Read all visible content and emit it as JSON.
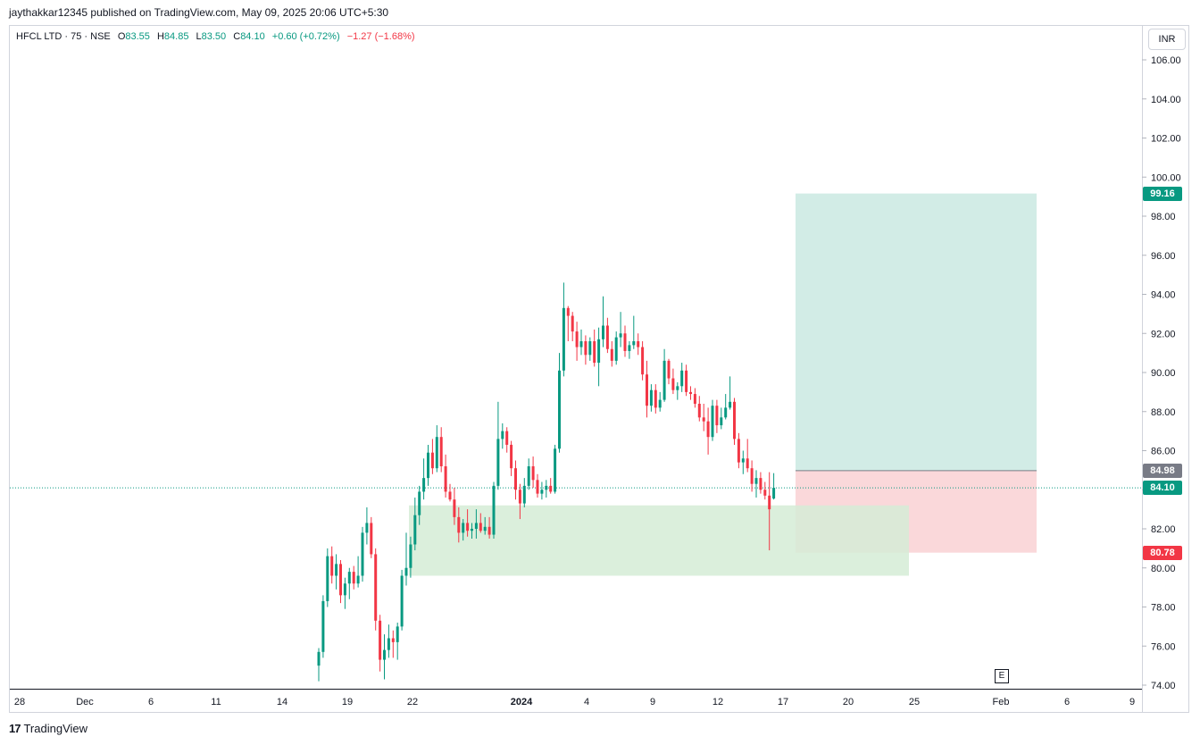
{
  "header": {
    "publish_text": "jaythakkar12345 published on TradingView.com, May 09, 2025 20:06 UTC+5:30"
  },
  "legend": {
    "symbol": "HFCL LTD · 75 · NSE",
    "o_label": "O",
    "o_value": "83.55",
    "h_label": "H",
    "h_value": "84.85",
    "l_label": "L",
    "l_value": "83.50",
    "c_label": "C",
    "c_value": "84.10",
    "change": "+0.60 (+0.72%)",
    "change2": "−1.27 (−1.68%)"
  },
  "price_axis": {
    "currency": "INR"
  },
  "badges": {
    "target": "99.16",
    "entry": "84.98",
    "last": "84.10",
    "stop": "80.78"
  },
  "event_marker": "E",
  "footer": {
    "brand": "TradingView",
    "logo_glyph": "17"
  },
  "colors": {
    "up": "#089981",
    "down": "#f23645",
    "target_zone": "#d2ece6",
    "stop_zone": "#fad8da",
    "demand_zone": "#d5ecd6",
    "entry_badge": "#787b86"
  },
  "chart_data": {
    "type": "candlestick",
    "timeframe": "75",
    "ylim": [
      74,
      107
    ],
    "y_ticks": [
      "106.00",
      "104.00",
      "102.00",
      "100.00",
      "98.00",
      "96.00",
      "94.00",
      "92.00",
      "90.00",
      "88.00",
      "86.00",
      "84.00",
      "82.00",
      "80.00",
      "78.00",
      "76.00",
      "74.00"
    ],
    "x_ticks": [
      "28",
      "Dec",
      "6",
      "11",
      "14",
      "19",
      "22",
      "2024",
      "4",
      "9",
      "12",
      "17",
      "20",
      "25",
      "Feb",
      "6",
      "9"
    ],
    "last_price": 84.1,
    "long_position": {
      "entry": 84.98,
      "target": 99.16,
      "stop": 80.78
    },
    "demand_zone": {
      "top": 83.2,
      "bottom": 79.6
    },
    "candles": [
      [
        75.0,
        75.9,
        74.2,
        75.7
      ],
      [
        75.7,
        78.6,
        75.4,
        78.3
      ],
      [
        78.3,
        81.0,
        78.0,
        80.6
      ],
      [
        80.6,
        81.1,
        79.2,
        79.6
      ],
      [
        79.6,
        80.7,
        78.9,
        80.2
      ],
      [
        80.2,
        80.4,
        78.2,
        78.6
      ],
      [
        78.6,
        79.5,
        77.9,
        79.2
      ],
      [
        79.2,
        80.0,
        78.4,
        79.8
      ],
      [
        79.8,
        80.1,
        78.9,
        79.2
      ],
      [
        79.2,
        80.6,
        79.0,
        79.6
      ],
      [
        79.6,
        82.1,
        79.3,
        81.8
      ],
      [
        81.8,
        83.1,
        81.2,
        82.3
      ],
      [
        82.3,
        82.6,
        80.5,
        80.7
      ],
      [
        80.7,
        81.0,
        76.8,
        77.3
      ],
      [
        77.3,
        77.6,
        74.7,
        75.3
      ],
      [
        75.3,
        76.6,
        74.3,
        75.8
      ],
      [
        75.8,
        77.1,
        75.4,
        76.4
      ],
      [
        76.4,
        76.8,
        75.4,
        76.2
      ],
      [
        76.2,
        77.2,
        75.3,
        77.0
      ],
      [
        77.0,
        79.9,
        76.8,
        79.6
      ],
      [
        79.6,
        81.8,
        79.1,
        80.0
      ],
      [
        80.0,
        81.6,
        79.5,
        81.2
      ],
      [
        81.2,
        83.6,
        80.9,
        82.7
      ],
      [
        82.7,
        84.2,
        82.2,
        83.9
      ],
      [
        83.9,
        85.6,
        83.5,
        84.6
      ],
      [
        84.6,
        86.3,
        84.2,
        85.9
      ],
      [
        85.9,
        86.6,
        84.8,
        85.1
      ],
      [
        85.1,
        87.3,
        84.9,
        86.7
      ],
      [
        86.7,
        87.2,
        84.9,
        85.2
      ],
      [
        85.2,
        85.8,
        83.6,
        83.9
      ],
      [
        83.9,
        84.3,
        83.4,
        83.5
      ],
      [
        83.5,
        84.1,
        82.2,
        82.6
      ],
      [
        82.6,
        83.1,
        81.3,
        81.8
      ],
      [
        81.8,
        82.5,
        81.4,
        82.3
      ],
      [
        82.3,
        83.0,
        81.6,
        81.9
      ],
      [
        81.9,
        82.3,
        81.5,
        82.0
      ],
      [
        82.0,
        83.0,
        81.5,
        82.3
      ],
      [
        82.3,
        82.8,
        81.8,
        81.9
      ],
      [
        81.9,
        82.6,
        81.7,
        82.1
      ],
      [
        82.1,
        82.6,
        81.5,
        81.7
      ],
      [
        81.7,
        84.4,
        81.5,
        84.2
      ],
      [
        84.2,
        88.5,
        84.0,
        86.6
      ],
      [
        86.6,
        87.4,
        86.1,
        87.0
      ],
      [
        87.0,
        87.2,
        85.9,
        86.3
      ],
      [
        86.3,
        86.5,
        84.7,
        85.1
      ],
      [
        85.1,
        85.5,
        83.5,
        84.0
      ],
      [
        84.0,
        84.3,
        82.5,
        83.3
      ],
      [
        83.3,
        84.6,
        83.1,
        84.2
      ],
      [
        84.2,
        85.6,
        84.0,
        85.2
      ],
      [
        85.2,
        85.7,
        84.1,
        84.5
      ],
      [
        84.5,
        84.8,
        83.6,
        83.8
      ],
      [
        83.8,
        84.4,
        83.5,
        84.0
      ],
      [
        84.0,
        84.5,
        83.6,
        84.2
      ],
      [
        84.2,
        84.6,
        83.8,
        83.9
      ],
      [
        83.9,
        86.3,
        83.8,
        86.1
      ],
      [
        86.1,
        91.0,
        85.9,
        90.1
      ],
      [
        90.1,
        94.6,
        89.8,
        93.3
      ],
      [
        93.3,
        93.4,
        91.6,
        92.9
      ],
      [
        92.9,
        93.1,
        91.6,
        92.1
      ],
      [
        92.1,
        92.6,
        90.6,
        91.3
      ],
      [
        91.3,
        92.2,
        90.9,
        91.6
      ],
      [
        91.6,
        91.9,
        90.4,
        90.9
      ],
      [
        90.9,
        91.8,
        90.6,
        91.6
      ],
      [
        91.6,
        92.2,
        90.3,
        90.5
      ],
      [
        90.5,
        92.3,
        89.3,
        91.7
      ],
      [
        91.7,
        93.9,
        91.3,
        92.4
      ],
      [
        92.4,
        92.8,
        91.0,
        91.2
      ],
      [
        91.2,
        91.6,
        90.3,
        90.6
      ],
      [
        90.6,
        92.1,
        90.4,
        91.8
      ],
      [
        91.8,
        93.1,
        91.3,
        92.0
      ],
      [
        92.0,
        92.4,
        90.8,
        91.1
      ],
      [
        91.1,
        91.6,
        90.7,
        91.4
      ],
      [
        91.4,
        92.9,
        91.2,
        91.6
      ],
      [
        91.6,
        92.0,
        90.9,
        91.3
      ],
      [
        91.3,
        91.6,
        89.6,
        89.9
      ],
      [
        89.9,
        90.6,
        87.7,
        88.3
      ],
      [
        88.3,
        89.4,
        88.0,
        89.1
      ],
      [
        89.1,
        89.4,
        87.9,
        88.2
      ],
      [
        88.2,
        89.0,
        88.0,
        88.6
      ],
      [
        88.6,
        91.2,
        88.5,
        90.6
      ],
      [
        90.6,
        90.7,
        89.4,
        89.7
      ],
      [
        89.7,
        90.2,
        88.9,
        89.1
      ],
      [
        89.1,
        89.5,
        88.6,
        89.3
      ],
      [
        89.3,
        90.5,
        89.0,
        90.1
      ],
      [
        90.1,
        90.4,
        88.8,
        89.0
      ],
      [
        89.0,
        89.3,
        88.6,
        88.9
      ],
      [
        88.9,
        89.2,
        88.2,
        88.4
      ],
      [
        88.4,
        88.8,
        87.5,
        87.7
      ],
      [
        87.7,
        88.4,
        87.0,
        87.5
      ],
      [
        87.5,
        88.2,
        85.8,
        86.7
      ],
      [
        86.7,
        88.6,
        86.5,
        88.3
      ],
      [
        88.3,
        88.6,
        86.9,
        87.3
      ],
      [
        87.3,
        88.2,
        87.1,
        87.7
      ],
      [
        87.7,
        88.9,
        87.6,
        88.2
      ],
      [
        88.2,
        89.8,
        88.1,
        88.5
      ],
      [
        88.5,
        88.7,
        86.3,
        86.6
      ],
      [
        86.6,
        86.9,
        85.1,
        85.4
      ],
      [
        85.4,
        86.0,
        84.8,
        85.6
      ],
      [
        85.6,
        86.6,
        84.9,
        85.1
      ],
      [
        85.1,
        85.5,
        83.9,
        84.3
      ],
      [
        84.3,
        85.0,
        83.6,
        84.6
      ],
      [
        84.6,
        84.9,
        83.8,
        84.0
      ],
      [
        84.0,
        84.4,
        83.5,
        83.7
      ],
      [
        83.7,
        84.9,
        80.9,
        83.0
      ],
      [
        83.55,
        84.85,
        83.5,
        84.1
      ]
    ]
  }
}
